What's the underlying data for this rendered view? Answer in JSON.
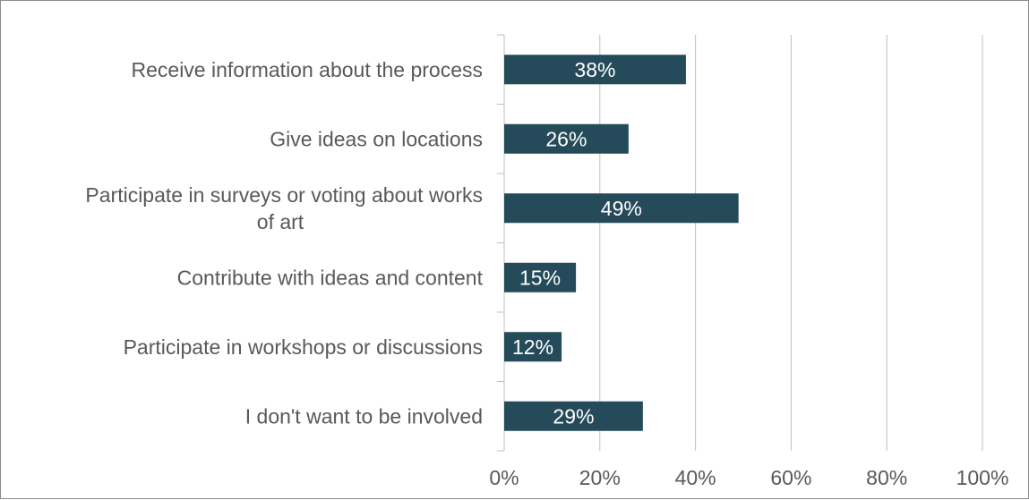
{
  "chart_data": {
    "type": "bar",
    "orientation": "horizontal",
    "categories": [
      "Receive information about the process",
      "Give ideas on locations",
      "Participate in surveys or voting about works of art",
      "Contribute with ideas and content",
      "Participate in workshops or discussions",
      "I don't want to be involved"
    ],
    "values": [
      38,
      26,
      49,
      15,
      12,
      29
    ],
    "data_labels": [
      "38%",
      "26%",
      "49%",
      "15%",
      "12%",
      "29%"
    ],
    "x_ticks": [
      "0%",
      "20%",
      "40%",
      "60%",
      "80%",
      "100%"
    ],
    "xlim": [
      0,
      100
    ],
    "grid": true,
    "legend": "none",
    "bar_color": "#254b5a"
  }
}
